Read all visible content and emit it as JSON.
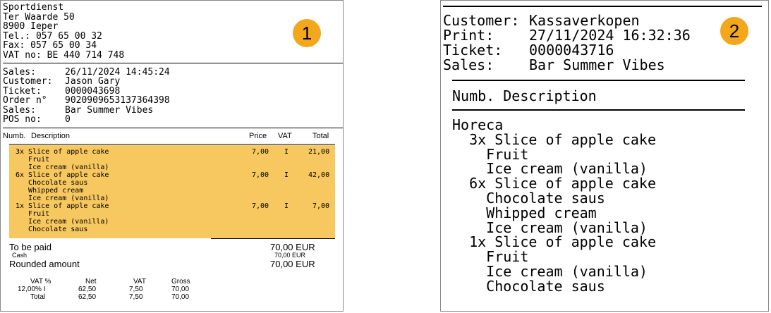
{
  "receipt1": {
    "badge": "1",
    "shop": [
      "Sportdienst",
      "Ter Waarde 50",
      "8900 Ieper",
      "Tel.: 057 65 00 32",
      "Fax: 057 65 00 34",
      "VAT no: BE 440 714 748"
    ],
    "info": [
      {
        "k": "Sales:",
        "v": "26/11/2024 14:45:24"
      },
      {
        "k": "Customer:",
        "v": "Jason Gary"
      },
      {
        "k": "Ticket:",
        "v": "0000043698"
      },
      {
        "k": "Order n°",
        "v": "9020909653137364398"
      },
      {
        "k": "Sales:",
        "v": "Bar Summer Vibes"
      },
      {
        "k": "POS no:",
        "v": "0"
      }
    ],
    "columns": {
      "numb": "Numb.",
      "description": "Description",
      "price": "Price",
      "vat": "VAT",
      "total": "Total"
    },
    "lines": [
      {
        "text": [
          "3x Slice of apple cake",
          "   Fruit",
          "   Ice cream (vanilla)"
        ],
        "price": "7,00",
        "vat": "I",
        "total": "21,00"
      },
      {
        "text": [
          "6x Slice of apple cake",
          "   Chocolate saus",
          "   Whipped cream",
          "   Ice cream (vanilla)"
        ],
        "price": "7,00",
        "vat": "I",
        "total": "42,00"
      },
      {
        "text": [
          "1x Slice of apple cake",
          "   Fruit",
          "   Ice cream (vanilla)",
          "   Chocolate saus"
        ],
        "price": "7,00",
        "vat": "I",
        "total": "7,00"
      }
    ],
    "totals": {
      "to_be_paid_label": "To be paid",
      "to_be_paid": "70,00 EUR",
      "cash_label": "Cash",
      "cash": "70,00 EUR",
      "rounded_label": "Rounded amount",
      "rounded": "70,00 EUR"
    },
    "vat_table": {
      "headers": [
        "VAT %",
        "Net",
        "VAT",
        "Gross"
      ],
      "rows": [
        [
          "12,00% I",
          "62,50",
          "7,50",
          "70,00"
        ],
        [
          "Total",
          "62,50",
          "7,50",
          "70,00"
        ]
      ]
    }
  },
  "receipt2": {
    "badge": "2",
    "info": [
      {
        "k": "Customer:",
        "v": "Kassaverkopen"
      },
      {
        "k": "Print:",
        "v": "27/11/2024 16:32:36"
      },
      {
        "k": "Ticket:",
        "v": "0000043716"
      },
      {
        "k": "Sales:",
        "v": "Bar Summer Vibes"
      }
    ],
    "column_header": "Numb. Description",
    "items": [
      "Horeca",
      "  3x Slice of apple cake",
      "    Fruit",
      "    Ice cream (vanilla)",
      "  6x Slice of apple cake",
      "    Chocolate saus",
      "    Whipped cream",
      "    Ice cream (vanilla)",
      "  1x Slice of apple cake",
      "    Fruit",
      "    Ice cream (vanilla)",
      "    Chocolate saus"
    ]
  }
}
